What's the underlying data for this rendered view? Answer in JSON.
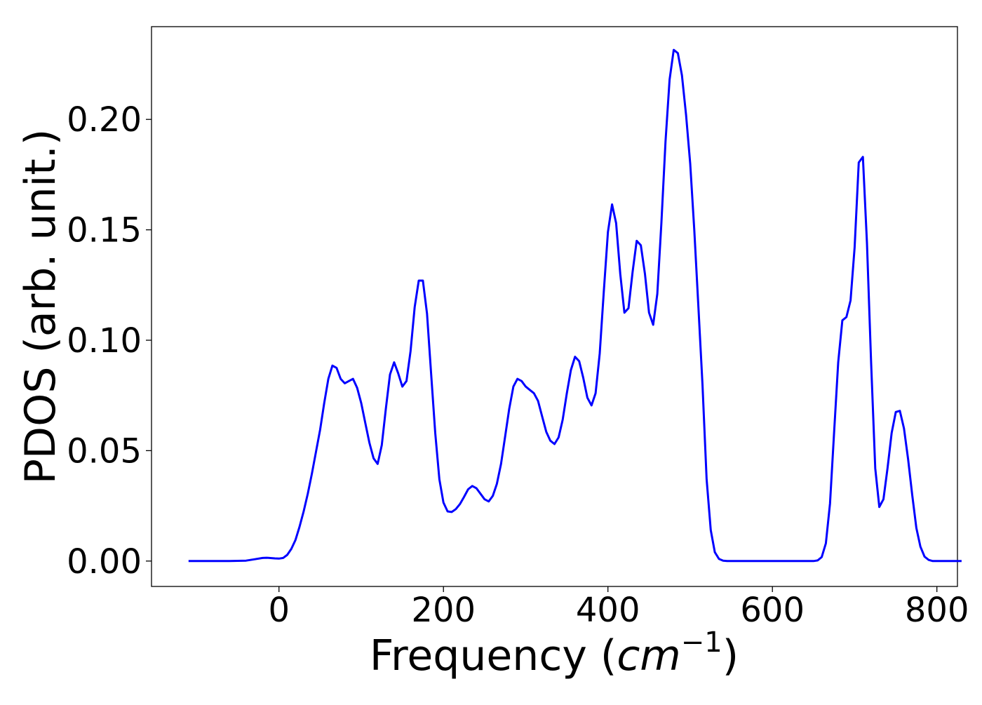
{
  "chart_data": {
    "type": "line",
    "xlabel_main": "Frequency (",
    "xlabel_math": "cm",
    "xlabel_sup": "−1",
    "xlabel_close": ")",
    "ylabel": "PDOS (arb. unit.)",
    "xlim": [
      -155,
      825
    ],
    "ylim": [
      -0.0115,
      0.242
    ],
    "x_ticks": [
      {
        "value": 0,
        "label": "0"
      },
      {
        "value": 200,
        "label": "200"
      },
      {
        "value": 400,
        "label": "400"
      },
      {
        "value": 600,
        "label": "600"
      },
      {
        "value": 800,
        "label": "800"
      }
    ],
    "y_ticks": [
      {
        "value": 0.0,
        "label": "0.00"
      },
      {
        "value": 0.05,
        "label": "0.05"
      },
      {
        "value": 0.1,
        "label": "0.10"
      },
      {
        "value": 0.15,
        "label": "0.15"
      },
      {
        "value": 0.2,
        "label": "0.20"
      }
    ],
    "grid": false,
    "legend": "none",
    "series": [
      {
        "color": "#0000ff",
        "points": [
          [
            -110,
            0.0
          ],
          [
            -60,
            0.0
          ],
          [
            -40,
            0.0002
          ],
          [
            -30,
            0.0008
          ],
          [
            -20,
            0.0014
          ],
          [
            -15,
            0.0015
          ],
          [
            -5,
            0.0012
          ],
          [
            0,
            0.0011
          ],
          [
            5,
            0.0014
          ],
          [
            10,
            0.0028
          ],
          [
            15,
            0.0055
          ],
          [
            20,
            0.0095
          ],
          [
            25,
            0.0155
          ],
          [
            30,
            0.0225
          ],
          [
            35,
            0.0305
          ],
          [
            40,
            0.0395
          ],
          [
            45,
            0.0495
          ],
          [
            50,
            0.0595
          ],
          [
            55,
            0.0715
          ],
          [
            60,
            0.0825
          ],
          [
            65,
            0.0885
          ],
          [
            70,
            0.0875
          ],
          [
            75,
            0.0825
          ],
          [
            80,
            0.0805
          ],
          [
            85,
            0.0815
          ],
          [
            90,
            0.0825
          ],
          [
            95,
            0.0785
          ],
          [
            100,
            0.0715
          ],
          [
            105,
            0.0625
          ],
          [
            110,
            0.0535
          ],
          [
            115,
            0.0465
          ],
          [
            120,
            0.044
          ],
          [
            125,
            0.0525
          ],
          [
            130,
            0.069
          ],
          [
            135,
            0.0845
          ],
          [
            140,
            0.09
          ],
          [
            145,
            0.085
          ],
          [
            150,
            0.079
          ],
          [
            155,
            0.0815
          ],
          [
            160,
            0.095
          ],
          [
            165,
            0.115
          ],
          [
            170,
            0.127
          ],
          [
            175,
            0.127
          ],
          [
            180,
            0.112
          ],
          [
            185,
            0.085
          ],
          [
            190,
            0.058
          ],
          [
            195,
            0.037
          ],
          [
            200,
            0.0265
          ],
          [
            205,
            0.0225
          ],
          [
            210,
            0.0222
          ],
          [
            215,
            0.0235
          ],
          [
            220,
            0.0258
          ],
          [
            225,
            0.029
          ],
          [
            230,
            0.0325
          ],
          [
            235,
            0.034
          ],
          [
            240,
            0.033
          ],
          [
            245,
            0.0305
          ],
          [
            250,
            0.028
          ],
          [
            255,
            0.027
          ],
          [
            260,
            0.0295
          ],
          [
            265,
            0.035
          ],
          [
            270,
            0.044
          ],
          [
            275,
            0.0565
          ],
          [
            280,
            0.069
          ],
          [
            285,
            0.079
          ],
          [
            290,
            0.0825
          ],
          [
            295,
            0.0815
          ],
          [
            300,
            0.079
          ],
          [
            305,
            0.0775
          ],
          [
            310,
            0.076
          ],
          [
            315,
            0.0725
          ],
          [
            320,
            0.0655
          ],
          [
            325,
            0.0585
          ],
          [
            330,
            0.0545
          ],
          [
            335,
            0.053
          ],
          [
            340,
            0.056
          ],
          [
            345,
            0.064
          ],
          [
            350,
            0.076
          ],
          [
            355,
            0.0865
          ],
          [
            360,
            0.0925
          ],
          [
            365,
            0.0905
          ],
          [
            370,
            0.083
          ],
          [
            375,
            0.074
          ],
          [
            380,
            0.0705
          ],
          [
            385,
            0.076
          ],
          [
            390,
            0.094
          ],
          [
            395,
            0.122
          ],
          [
            400,
            0.149
          ],
          [
            405,
            0.1615
          ],
          [
            410,
            0.153
          ],
          [
            415,
            0.13
          ],
          [
            420,
            0.1125
          ],
          [
            425,
            0.1145
          ],
          [
            430,
            0.131
          ],
          [
            435,
            0.145
          ],
          [
            440,
            0.143
          ],
          [
            445,
            0.13
          ],
          [
            450,
            0.1125
          ],
          [
            455,
            0.107
          ],
          [
            460,
            0.121
          ],
          [
            465,
            0.153
          ],
          [
            470,
            0.19
          ],
          [
            475,
            0.218
          ],
          [
            480,
            0.2315
          ],
          [
            485,
            0.23
          ],
          [
            490,
            0.22
          ],
          [
            495,
            0.202
          ],
          [
            500,
            0.18
          ],
          [
            505,
            0.15
          ],
          [
            510,
            0.115
          ],
          [
            515,
            0.08
          ],
          [
            520,
            0.037
          ],
          [
            525,
            0.014
          ],
          [
            530,
            0.004
          ],
          [
            535,
            0.001
          ],
          [
            540,
            0.0002
          ],
          [
            545,
            0.0
          ],
          [
            650,
            0.0
          ],
          [
            655,
            0.0003
          ],
          [
            660,
            0.0018
          ],
          [
            665,
            0.008
          ],
          [
            670,
            0.026
          ],
          [
            675,
            0.058
          ],
          [
            680,
            0.09
          ],
          [
            685,
            0.109
          ],
          [
            690,
            0.1105
          ],
          [
            695,
            0.118
          ],
          [
            700,
            0.142
          ],
          [
            705,
            0.1805
          ],
          [
            710,
            0.183
          ],
          [
            715,
            0.144
          ],
          [
            720,
            0.09
          ],
          [
            725,
            0.042
          ],
          [
            730,
            0.0245
          ],
          [
            735,
            0.028
          ],
          [
            740,
            0.042
          ],
          [
            745,
            0.058
          ],
          [
            750,
            0.0675
          ],
          [
            755,
            0.068
          ],
          [
            760,
            0.06
          ],
          [
            765,
            0.046
          ],
          [
            770,
            0.03
          ],
          [
            775,
            0.015
          ],
          [
            780,
            0.0065
          ],
          [
            785,
            0.002
          ],
          [
            790,
            0.0005
          ],
          [
            795,
            0.0
          ],
          [
            830,
            0.0
          ]
        ]
      }
    ]
  }
}
